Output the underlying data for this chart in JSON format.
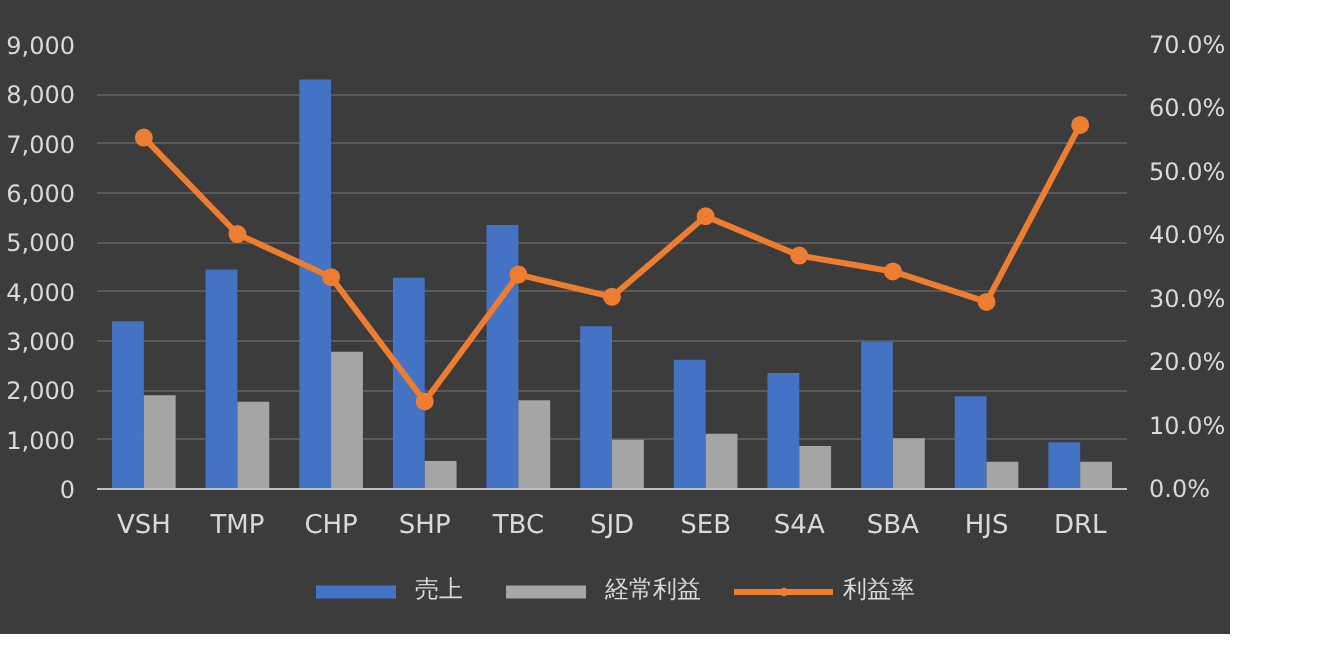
{
  "chart_data": {
    "type": "bar",
    "categories": [
      "VSH",
      "TMP",
      "CHP",
      "SHP",
      "TBC",
      "SJD",
      "SEB",
      "S4A",
      "SBA",
      "HJS",
      "DRL"
    ],
    "series": [
      {
        "name": "売上",
        "color": "#4472c4",
        "values": [
          3400,
          4450,
          8300,
          4280,
          5350,
          3300,
          2620,
          2350,
          2980,
          1880,
          950
        ]
      },
      {
        "name": "経常利益",
        "color": "#a5a5a5",
        "values": [
          1900,
          1770,
          2780,
          570,
          1800,
          1000,
          1120,
          870,
          1030,
          550,
          550
        ]
      },
      {
        "name": "利益率",
        "type": "line",
        "axis": "y2",
        "color": "#ed7d31",
        "values": [
          55.4,
          40.2,
          33.4,
          13.8,
          33.8,
          30.3,
          43.0,
          36.8,
          34.3,
          29.5,
          57.4
        ]
      }
    ],
    "ylim": [
      0,
      9000
    ],
    "yticks": [
      {
        "value": 0,
        "label": "0"
      },
      {
        "value": 1000,
        "label": "1,000"
      },
      {
        "value": 2000,
        "label": "2,000"
      },
      {
        "value": 3000,
        "label": "3,000"
      },
      {
        "value": 4000,
        "label": "4,000"
      },
      {
        "value": 5000,
        "label": "5,000"
      },
      {
        "value": 6000,
        "label": "6,000"
      },
      {
        "value": 7000,
        "label": "7,000"
      },
      {
        "value": 8000,
        "label": "8,000"
      },
      {
        "value": 9000,
        "label": "9,000"
      }
    ],
    "y2lim": [
      0,
      70
    ],
    "y2ticks": [
      {
        "value": 0,
        "label": "0.0%"
      },
      {
        "value": 10,
        "label": "10.0%"
      },
      {
        "value": 20,
        "label": "20.0%"
      },
      {
        "value": 30,
        "label": "30.0%"
      },
      {
        "value": 40,
        "label": "40.0%"
      },
      {
        "value": 50,
        "label": "50.0%"
      },
      {
        "value": 60,
        "label": "60.0%"
      },
      {
        "value": 70,
        "label": "70.0%"
      }
    ],
    "grid": "y",
    "legend": "bottom",
    "marker": "circle"
  }
}
